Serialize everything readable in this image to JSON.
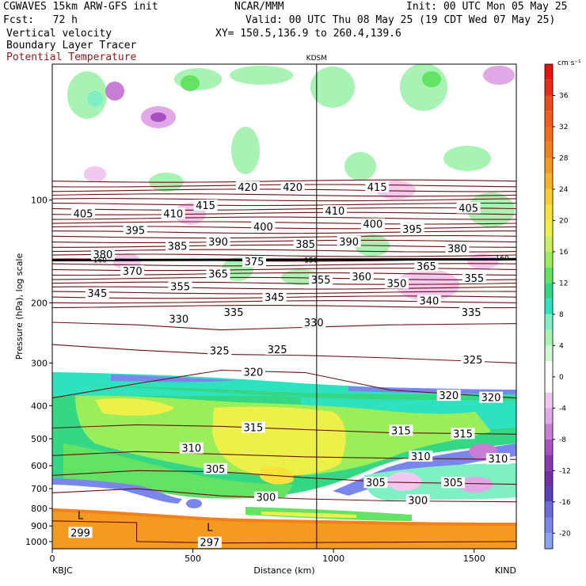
{
  "header": {
    "line1_left": "CGWAVES 15km ARW-GFS init",
    "line1_mid": "NCAR/MMM",
    "line1_right": "Init: 00 UTC Mon 05 May 25",
    "line2_left": "Fcst:   72 h",
    "line2_right": "Valid: 00 UTC Thu 08 May 25 (19 CDT Wed 07 May 25)",
    "field1": "Vertical velocity",
    "field2": "Boundary Layer Tracer",
    "field3": "Potential Temperature",
    "xy": "XY= 150.5,136.9 to 260.4,139.6"
  },
  "colors": {
    "theta_contour": "#6b0f0f",
    "tropopause": "#000000"
  },
  "chart_data": {
    "type": "heatmap",
    "title": "",
    "station_top": "KDSM",
    "xlabel": "Distance (km)",
    "ylabel": "Pressure (hPa), log scale",
    "x_range": [
      0,
      1650
    ],
    "x_ticks": [
      "0",
      "500",
      "1000",
      "1500"
    ],
    "x_tick_values": [
      0,
      500,
      1000,
      1500
    ],
    "x_end_labels": {
      "left": "KBJC",
      "right": "KIND"
    },
    "y_scale": "log",
    "y_range": [
      1050,
      40
    ],
    "y_ticks": [
      "100",
      "200",
      "300",
      "400",
      "500",
      "600",
      "700",
      "800",
      "900",
      "1000"
    ],
    "y_tick_values": [
      100,
      200,
      300,
      400,
      500,
      600,
      700,
      800,
      900,
      1000
    ],
    "kdsm_x_km": 940,
    "colorbar": {
      "unit": "cm s⁻¹",
      "labels": [
        "36",
        "32",
        "28",
        "24",
        "20",
        "16",
        "12",
        "8",
        "4",
        "0",
        "-4",
        "-8",
        "-12",
        "-16",
        "-20"
      ],
      "label_values": [
        36,
        32,
        28,
        24,
        20,
        16,
        12,
        8,
        4,
        0,
        -4,
        -8,
        -12,
        -16,
        -20
      ],
      "bins": [
        {
          "from": 38,
          "to": 40,
          "color": "#e8120c"
        },
        {
          "from": 36,
          "to": 38,
          "color": "#ea2a12"
        },
        {
          "from": 34,
          "to": 36,
          "color": "#ee4a18"
        },
        {
          "from": 32,
          "to": 34,
          "color": "#f25a18"
        },
        {
          "from": 30,
          "to": 32,
          "color": "#f36d17"
        },
        {
          "from": 28,
          "to": 30,
          "color": "#f4801a"
        },
        {
          "from": 26,
          "to": 28,
          "color": "#f59a20"
        },
        {
          "from": 24,
          "to": 26,
          "color": "#f7b22a"
        },
        {
          "from": 22,
          "to": 24,
          "color": "#f8cc32"
        },
        {
          "from": 20,
          "to": 22,
          "color": "#f6e23a"
        },
        {
          "from": 18,
          "to": 20,
          "color": "#eef04a"
        },
        {
          "from": 16,
          "to": 18,
          "color": "#c8f060"
        },
        {
          "from": 14,
          "to": 16,
          "color": "#9aee5a"
        },
        {
          "from": 12,
          "to": 14,
          "color": "#63e264"
        },
        {
          "from": 10,
          "to": 12,
          "color": "#34d884"
        },
        {
          "from": 8,
          "to": 10,
          "color": "#2ee2c0"
        },
        {
          "from": 6,
          "to": 8,
          "color": "#7ef0c4"
        },
        {
          "from": 4,
          "to": 6,
          "color": "#a8f2b4"
        },
        {
          "from": 2,
          "to": 4,
          "color": "#d2f6d2"
        },
        {
          "from": -2,
          "to": 2,
          "color": "#ffffff"
        },
        {
          "from": -4,
          "to": -2,
          "color": "#f0c8f0"
        },
        {
          "from": -6,
          "to": -4,
          "color": "#e0a8e6"
        },
        {
          "from": -8,
          "to": -6,
          "color": "#c97ed6"
        },
        {
          "from": -10,
          "to": -8,
          "color": "#a850c0"
        },
        {
          "from": -12,
          "to": -10,
          "color": "#8a3ab0"
        },
        {
          "from": -14,
          "to": -12,
          "color": "#7030a8"
        },
        {
          "from": -16,
          "to": -14,
          "color": "#5a40b8"
        },
        {
          "from": -18,
          "to": -16,
          "color": "#6a6ad8"
        },
        {
          "from": -20,
          "to": -18,
          "color": "#7a86ec"
        },
        {
          "from": -22,
          "to": -20,
          "color": "#8ea2f4"
        }
      ]
    },
    "contour_labels": [
      {
        "text": "420",
        "x": 695,
        "p": 92
      },
      {
        "text": "420",
        "x": 855,
        "p": 92
      },
      {
        "text": "415",
        "x": 1155,
        "p": 92
      },
      {
        "text": "415",
        "x": 545,
        "p": 104
      },
      {
        "text": "410",
        "x": 430,
        "p": 110
      },
      {
        "text": "410",
        "x": 1005,
        "p": 108
      },
      {
        "text": "405",
        "x": 110,
        "p": 110
      },
      {
        "text": "405",
        "x": 1480,
        "p": 106
      },
      {
        "text": "400",
        "x": 750,
        "p": 120
      },
      {
        "text": "400",
        "x": 1140,
        "p": 118
      },
      {
        "text": "395",
        "x": 295,
        "p": 123
      },
      {
        "text": "395",
        "x": 1280,
        "p": 122
      },
      {
        "text": "390",
        "x": 590,
        "p": 133
      },
      {
        "text": "390",
        "x": 1055,
        "p": 133
      },
      {
        "text": "385",
        "x": 445,
        "p": 137
      },
      {
        "text": "385",
        "x": 900,
        "p": 135
      },
      {
        "text": "380",
        "x": 180,
        "p": 145
      },
      {
        "text": "380",
        "x": 1440,
        "p": 139
      },
      {
        "text": "375",
        "x": 718,
        "p": 152
      },
      {
        "text": "370",
        "x": 285,
        "p": 162
      },
      {
        "text": "365",
        "x": 590,
        "p": 165
      },
      {
        "text": "365",
        "x": 1330,
        "p": 157
      },
      {
        "text": "360",
        "x": 1100,
        "p": 168
      },
      {
        "text": "355",
        "x": 455,
        "p": 180
      },
      {
        "text": "355",
        "x": 955,
        "p": 172
      },
      {
        "text": "355",
        "x": 1500,
        "p": 170
      },
      {
        "text": "350",
        "x": 1225,
        "p": 176
      },
      {
        "text": "345",
        "x": 160,
        "p": 188
      },
      {
        "text": "345",
        "x": 790,
        "p": 193
      },
      {
        "text": "340",
        "x": 1340,
        "p": 198
      },
      {
        "text": "335",
        "x": 645,
        "p": 214
      },
      {
        "text": "335",
        "x": 1490,
        "p": 214
      },
      {
        "text": "330",
        "x": 450,
        "p": 224
      },
      {
        "text": "330",
        "x": 930,
        "p": 229
      },
      {
        "text": "325",
        "x": 595,
        "p": 277
      },
      {
        "text": "325",
        "x": 800,
        "p": 275
      },
      {
        "text": "325",
        "x": 1495,
        "p": 295
      },
      {
        "text": "320",
        "x": 715,
        "p": 320
      },
      {
        "text": "320",
        "x": 1410,
        "p": 375
      },
      {
        "text": "320",
        "x": 1560,
        "p": 380
      },
      {
        "text": "315",
        "x": 715,
        "p": 465
      },
      {
        "text": "315",
        "x": 1240,
        "p": 475
      },
      {
        "text": "315",
        "x": 1460,
        "p": 485
      },
      {
        "text": "310",
        "x": 495,
        "p": 535
      },
      {
        "text": "310",
        "x": 1310,
        "p": 565
      },
      {
        "text": "310",
        "x": 1585,
        "p": 575
      },
      {
        "text": "305",
        "x": 580,
        "p": 615
      },
      {
        "text": "305",
        "x": 1150,
        "p": 675
      },
      {
        "text": "305",
        "x": 1425,
        "p": 675
      },
      {
        "text": "300",
        "x": 760,
        "p": 745
      },
      {
        "text": "300",
        "x": 1300,
        "p": 760
      },
      {
        "text": "299",
        "x": 100,
        "p": 945
      },
      {
        "text": "297",
        "x": 560,
        "p": 1010
      }
    ],
    "tropopause_labels": [
      {
        "text": "160",
        "x": 170,
        "p": 150
      },
      {
        "text": "150",
        "x": 920,
        "p": 150
      },
      {
        "text": "160",
        "x": 1600,
        "p": 148
      }
    ],
    "low_markers": [
      {
        "text": "L",
        "x": 100,
        "p": 860
      },
      {
        "text": "L",
        "x": 560,
        "p": 930
      }
    ]
  }
}
